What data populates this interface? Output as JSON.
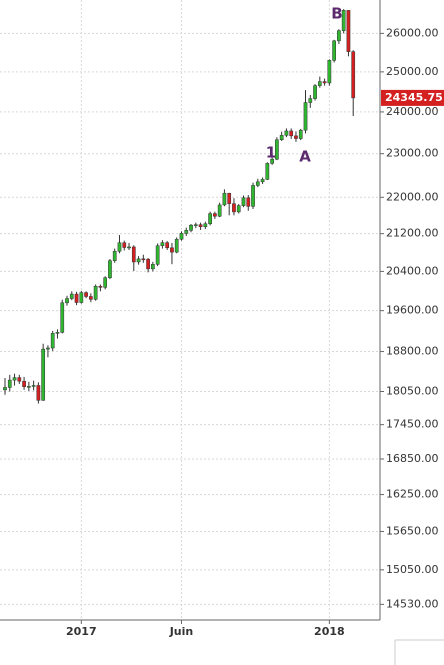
{
  "chart_data": {
    "type": "candlestick",
    "categories": [
      null,
      null,
      null,
      null,
      null,
      null,
      null,
      null,
      null,
      null,
      null,
      null,
      null,
      null,
      null,
      null,
      "2017",
      null,
      null,
      null,
      null,
      null,
      null,
      null,
      null,
      null,
      null,
      null,
      null,
      null,
      null,
      null,
      null,
      null,
      null,
      null,
      null,
      "Juin",
      null,
      null,
      null,
      null,
      null,
      null,
      null,
      null,
      null,
      null,
      null,
      null,
      null,
      null,
      null,
      null,
      null,
      null,
      null,
      null,
      null,
      null,
      null,
      null,
      null,
      null,
      null,
      null,
      null,
      null,
      "2018",
      null,
      null,
      null,
      null,
      null
    ],
    "open": [
      18080,
      18124,
      18261,
      18308,
      18240,
      18138,
      18145,
      18161,
      17888,
      18847,
      18868,
      19152,
      19171,
      19757,
      19843,
      19934,
      19763,
      19964,
      19885,
      19827,
      20094,
      20071,
      20269,
      20624,
      20822,
      21005,
      20903,
      20915,
      20597,
      20663,
      20656,
      20453,
      20548,
      20941,
      21007,
      20897,
      20805,
      21080,
      21206,
      21272,
      21384,
      21395,
      21350,
      21414,
      21638,
      21580,
      21830,
      22092,
      21858,
      21675,
      21814,
      21988,
      21798,
      22268,
      22350,
      22405,
      22774,
      22872,
      23329,
      23434,
      23539,
      23422,
      23358,
      23558,
      24231,
      24329,
      24652,
      24754,
      24719,
      25296,
      25803,
      26072,
      26617,
      25521
    ],
    "high": [
      18300,
      18360,
      18380,
      18360,
      18320,
      18230,
      18250,
      18220,
      18950,
      18920,
      19200,
      19230,
      19820,
      19900,
      19990,
      19980,
      20000,
      19990,
      19950,
      20130,
      20130,
      20300,
      20660,
      20880,
      21170,
      21050,
      21000,
      20950,
      20720,
      20750,
      20680,
      20600,
      20990,
      21060,
      21040,
      21000,
      21120,
      21250,
      21330,
      21410,
      21440,
      21440,
      21460,
      21680,
      21680,
      21880,
      22180,
      22100,
      21980,
      21850,
      22040,
      22050,
      22330,
      22420,
      22450,
      22800,
      23000,
      23390,
      23520,
      23600,
      23600,
      23530,
      23590,
      24540,
      24420,
      24690,
      24880,
      24830,
      25320,
      25830,
      26110,
      26650,
      26620,
      25560
    ],
    "low": [
      17990,
      18050,
      18160,
      18190,
      18080,
      18060,
      18070,
      17830,
      17880,
      18690,
      18810,
      19050,
      19150,
      19700,
      19810,
      19710,
      19740,
      19850,
      19770,
      19800,
      19990,
      20030,
      20240,
      20580,
      20780,
      20840,
      20850,
      20410,
      20540,
      20580,
      20380,
      20400,
      20510,
      20880,
      20850,
      20550,
      20780,
      21050,
      21150,
      21230,
      21320,
      21280,
      21300,
      21380,
      21520,
      21560,
      21800,
      21600,
      21600,
      21640,
      21780,
      21700,
      21740,
      22230,
      22300,
      22390,
      22740,
      22850,
      23300,
      23390,
      23350,
      23280,
      23320,
      23480,
      24100,
      24280,
      24600,
      24650,
      24650,
      25240,
      25720,
      26000,
      25400,
      23900
    ],
    "close": [
      18124,
      18261,
      18308,
      18240,
      18138,
      18145,
      18161,
      17888,
      18847,
      18868,
      19152,
      19171,
      19757,
      19843,
      19934,
      19763,
      19964,
      19885,
      19827,
      20094,
      20071,
      20269,
      20624,
      20822,
      21005,
      20903,
      20915,
      20597,
      20663,
      20656,
      20453,
      20548,
      20941,
      21007,
      20897,
      20805,
      21080,
      21206,
      21272,
      21384,
      21395,
      21350,
      21414,
      21638,
      21580,
      21830,
      22092,
      21858,
      21675,
      21814,
      21988,
      21798,
      22268,
      22350,
      22405,
      22774,
      22872,
      23329,
      23434,
      23539,
      23422,
      23358,
      23558,
      24231,
      24329,
      24652,
      24754,
      24719,
      25296,
      25803,
      26072,
      26617,
      25521,
      24345.75
    ],
    "up_color": "#2fb52f",
    "down_color": "#d42020",
    "log_scale": true,
    "grid": true,
    "ylim": [
      14300,
      26900
    ],
    "yticks": [
      {
        "value": 14530,
        "label": "14530.00"
      },
      {
        "value": 15050,
        "label": "15050.00"
      },
      {
        "value": 15650,
        "label": "15650.00"
      },
      {
        "value": 16250,
        "label": "16250.00"
      },
      {
        "value": 16850,
        "label": "16850.00"
      },
      {
        "value": 17450,
        "label": "17450.00"
      },
      {
        "value": 18050,
        "label": "18050.00"
      },
      {
        "value": 18800,
        "label": "18800.00"
      },
      {
        "value": 19600,
        "label": "19600.00"
      },
      {
        "value": 20400,
        "label": "20400.00"
      },
      {
        "value": 21200,
        "label": "21200.00"
      },
      {
        "value": 22000,
        "label": "22000.00"
      },
      {
        "value": 23000,
        "label": "23000.00"
      },
      {
        "value": 24000,
        "label": "24000.00"
      },
      {
        "value": 25000,
        "label": "25000.00"
      },
      {
        "value": 26000,
        "label": "26000.00"
      }
    ],
    "annotations": [
      "B",
      "1",
      "A"
    ]
  }
}
